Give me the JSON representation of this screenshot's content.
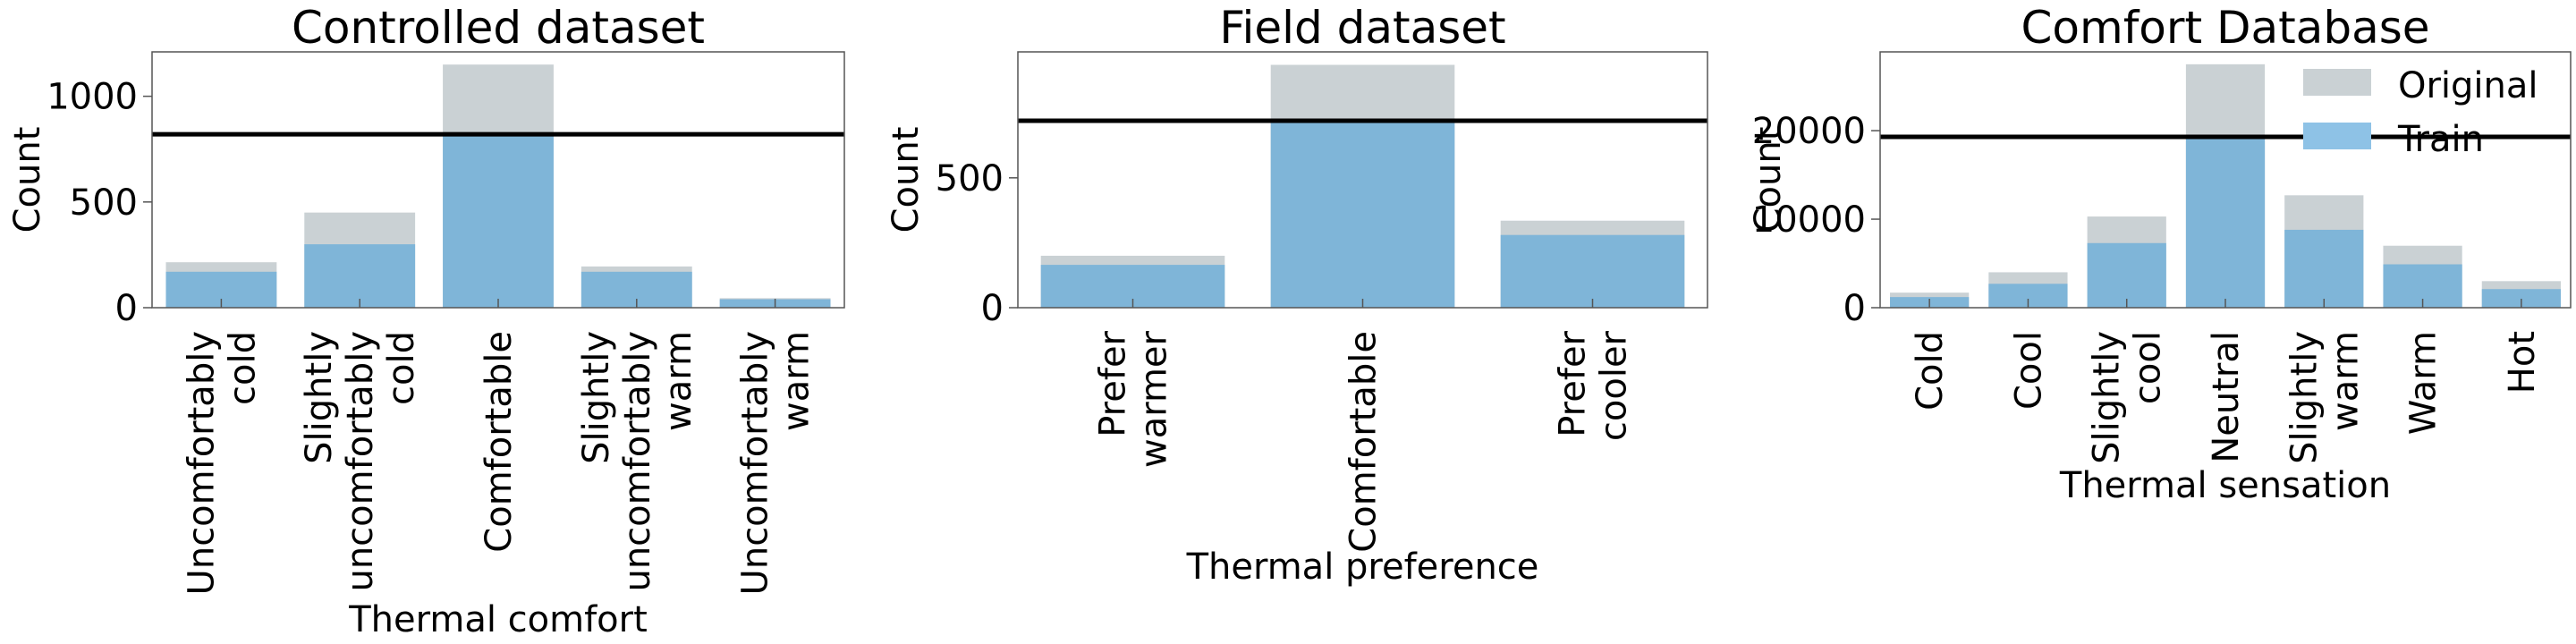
{
  "colors": {
    "original": "#cad1d4",
    "train": "#7fb5d8",
    "threshold": "#000000",
    "axis": "#555555"
  },
  "legend": {
    "placement": "top-right",
    "entries": [
      {
        "label": "Original",
        "color": "#cad1d4"
      },
      {
        "label": "Train",
        "color": "#8ec2e6"
      }
    ]
  },
  "chart_data": [
    {
      "type": "bar",
      "title": "Controlled dataset",
      "xlabel": "Thermal comfort",
      "ylabel": "Count",
      "categories": [
        [
          "Uncomfortably",
          "cold"
        ],
        [
          "Slightly",
          "uncomfortably",
          "cold"
        ],
        [
          "Comfortable"
        ],
        [
          "Slightly",
          "uncomfortably",
          "warm"
        ],
        [
          "Uncomfortably",
          "warm"
        ]
      ],
      "series": [
        {
          "name": "Original",
          "values": [
            215,
            450,
            1150,
            195,
            45
          ]
        },
        {
          "name": "Train",
          "values": [
            170,
            300,
            820,
            170,
            40
          ]
        }
      ],
      "threshold": 820,
      "ylim": [
        0,
        1210
      ],
      "yticks": [
        0,
        500,
        1000
      ],
      "grid": false
    },
    {
      "type": "bar",
      "title": "Field dataset",
      "xlabel": "Thermal preference",
      "ylabel": "Count",
      "categories": [
        [
          "Prefer",
          "warmer"
        ],
        [
          "Comfortable"
        ],
        [
          "Prefer",
          "cooler"
        ]
      ],
      "series": [
        {
          "name": "Original",
          "values": [
            200,
            935,
            335
          ]
        },
        {
          "name": "Train",
          "values": [
            165,
            720,
            280
          ]
        }
      ],
      "threshold": 720,
      "ylim": [
        0,
        985
      ],
      "yticks": [
        0,
        500
      ],
      "grid": false
    },
    {
      "type": "bar",
      "title": "Comfort Database",
      "xlabel": "Thermal sensation",
      "ylabel": "Count",
      "categories": [
        [
          "Cold"
        ],
        [
          "Cool"
        ],
        [
          "Slightly",
          "cool"
        ],
        [
          "Neutral"
        ],
        [
          "Slightly",
          "warm"
        ],
        [
          "Warm"
        ],
        [
          "Hot"
        ]
      ],
      "series": [
        {
          "name": "Original",
          "values": [
            1700,
            4000,
            10300,
            27500,
            12700,
            7000,
            3000
          ]
        },
        {
          "name": "Train",
          "values": [
            1200,
            2700,
            7300,
            19300,
            8800,
            4900,
            2100
          ]
        }
      ],
      "threshold": 19300,
      "ylim": [
        0,
        28900
      ],
      "yticks": [
        0,
        10000,
        20000
      ],
      "grid": false
    }
  ]
}
